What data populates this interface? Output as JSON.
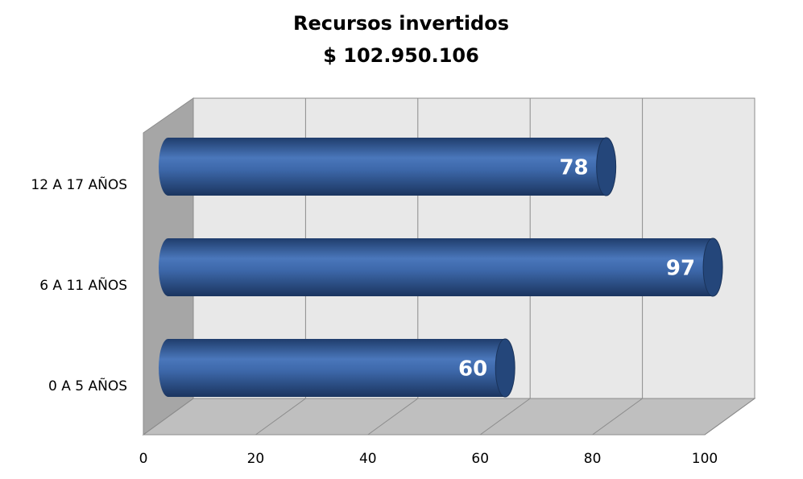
{
  "chart_data": {
    "type": "bar",
    "orientation": "horizontal",
    "title": "Recursos invertidos",
    "subtitle": "$ 102.950.106",
    "categories": [
      "0 A 5 AÑOS",
      "6 A 11 AÑOS",
      "12 A 17 AÑOS"
    ],
    "values": [
      60,
      97,
      78
    ],
    "color": "#3b63a3",
    "xlim": [
      0,
      100
    ],
    "xticks": [
      0,
      20,
      40,
      60,
      80,
      100
    ],
    "grid": true
  }
}
